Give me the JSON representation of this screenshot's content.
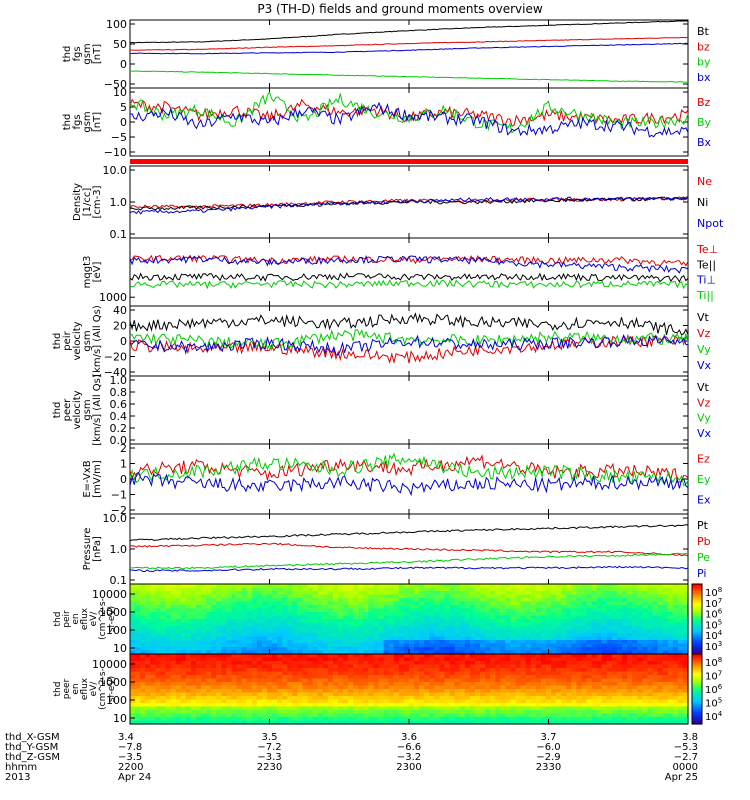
{
  "title": "P3 (TH-D) fields and ground moments overview",
  "chart_data": {
    "type": "line",
    "x_range": [
      "22:00",
      "24:00"
    ],
    "x_ticks": [
      "2200",
      "2230",
      "2300",
      "2330",
      "0000"
    ],
    "panels": [
      {
        "ylabel": [
          "thd",
          "fgs",
          "gsm",
          "[nT]"
        ],
        "yticks": [
          "100",
          "50",
          "0",
          "−50"
        ],
        "ylim": [
          -70,
          110
        ],
        "scale": "linear",
        "series": [
          {
            "name": "Bt",
            "color": "#000000",
            "values": [
              50,
              52,
              60,
              72,
              82,
              90,
              96,
              102,
              108
            ]
          },
          {
            "name": "bz",
            "color": "#dd0000",
            "values": [
              30,
              32,
              38,
              42,
              48,
              52,
              56,
              60,
              64
            ]
          },
          {
            "name": "by",
            "color": "#00cc00",
            "values": [
              -25,
              -28,
              -32,
              -36,
              -40,
              -44,
              -48,
              -52,
              -54
            ]
          },
          {
            "name": "bx",
            "color": "#0000cc",
            "values": [
              22,
              21,
              23,
              25,
              30,
              36,
              40,
              44,
              48
            ]
          }
        ]
      },
      {
        "ylabel": [
          "thd",
          "fgs",
          "gsm",
          "[nT]"
        ],
        "yticks": [
          "10",
          "5",
          "0",
          "−5",
          "−10"
        ],
        "ylim": [
          -14,
          11
        ],
        "scale": "linear",
        "series": [
          {
            "name": "Bz",
            "color": "#dd0000",
            "values": [
              5,
              4,
              1,
              3,
              0,
              5,
              2,
              3,
              0,
              2,
              1,
              -1,
              1,
              0,
              -1,
              0,
              1
            ]
          },
          {
            "name": "By",
            "color": "#00cc00",
            "values": [
              6,
              1,
              3,
              -2,
              8,
              -1,
              7,
              2,
              0,
              3,
              -2,
              -4,
              4,
              1,
              -2,
              -2,
              0
            ]
          },
          {
            "name": "Bx",
            "color": "#0000cc",
            "values": [
              0,
              2,
              -3,
              1,
              -2,
              3,
              -1,
              4,
              1,
              0,
              -1,
              -5,
              -4,
              -2,
              -3,
              -5,
              -5
            ]
          }
        ]
      },
      {
        "ylabel": [
          "Density",
          "[1/cc]",
          "[cm-3]"
        ],
        "yticks": [
          "10.0",
          "1.0",
          "0.1"
        ],
        "ylim": [
          0.1,
          12
        ],
        "scale": "log",
        "series": [
          {
            "name": "Ne",
            "color": "#dd0000",
            "values": [
              0.8,
              0.8,
              0.9,
              1.1,
              1.2,
              1.2,
              1.3,
              1.3,
              1.4
            ]
          },
          {
            "name": "Ni",
            "color": "#000000",
            "values": [
              0.7,
              0.75,
              0.85,
              1.0,
              1.1,
              1.1,
              1.2,
              1.3,
              1.4
            ]
          },
          {
            "name": "Npot",
            "color": "#0000cc",
            "values": [
              0.55,
              0.6,
              0.8,
              1.0,
              1.15,
              1.3,
              1.35,
              1.35,
              1.4
            ]
          }
        ]
      },
      {
        "ylabel": [
          "mqgt3",
          "[eV]"
        ],
        "yticks": [
          "1000"
        ],
        "ylim": [
          300,
          40000
        ],
        "scale": "log",
        "series": [
          {
            "name": "Te⊥",
            "color": "#dd0000",
            "values": [
              9000,
              9500,
              8000,
              9000,
              8500,
              9000,
              8000,
              8500,
              6000
            ]
          },
          {
            "name": "Te||",
            "color": "#000000",
            "values": [
              2500,
              2500,
              2400,
              2600,
              2500,
              2400,
              2600,
              2300,
              2200
            ]
          },
          {
            "name": "Ti⊥",
            "color": "#0000cc",
            "values": [
              8000,
              9000,
              7000,
              8500,
              9000,
              8000,
              6000,
              5000,
              4000
            ]
          },
          {
            "name": "Ti||",
            "color": "#00cc00",
            "values": [
              1500,
              1400,
              1500,
              1400,
              1600,
              1500,
              1400,
              1500,
              1400
            ]
          }
        ]
      },
      {
        "ylabel": [
          "thd",
          "peir",
          "velocity",
          "gsm",
          "[km/s] (All Qs)"
        ],
        "yticks": [
          "40",
          "20",
          "0",
          "−20",
          "−40"
        ],
        "ylim": [
          -42,
          42
        ],
        "scale": "linear",
        "series": [
          {
            "name": "Vt",
            "color": "#000000",
            "values": [
              18,
              22,
              25,
              20,
              28,
              22,
              20,
              24,
              10
            ]
          },
          {
            "name": "Vz",
            "color": "#dd0000",
            "values": [
              -5,
              -10,
              -8,
              -15,
              -20,
              -10,
              -5,
              0,
              0
            ]
          },
          {
            "name": "Vy",
            "color": "#00cc00",
            "values": [
              5,
              0,
              -5,
              8,
              2,
              0,
              5,
              3,
              2
            ]
          },
          {
            "name": "Vx",
            "color": "#0000cc",
            "values": [
              -5,
              -8,
              -2,
              -10,
              0,
              -5,
              -3,
              0,
              0
            ]
          }
        ]
      },
      {
        "ylabel": [
          "thd",
          "peer",
          "velocity",
          "gsm",
          "[km/s] (All Qs)"
        ],
        "yticks": [
          "1.0",
          "0.8",
          "0.6",
          "0.4",
          "0.2",
          "0.0"
        ],
        "ylim": [
          0,
          1
        ],
        "scale": "linear",
        "series": [
          {
            "name": "Vt",
            "color": "#000000",
            "values": []
          },
          {
            "name": "Vz",
            "color": "#dd0000",
            "values": []
          },
          {
            "name": "Vy",
            "color": "#00cc00",
            "values": []
          },
          {
            "name": "Vx",
            "color": "#0000cc",
            "values": []
          }
        ]
      },
      {
        "ylabel": [
          "E=-VxB",
          "[mV/m]"
        ],
        "yticks": [
          "2",
          "1",
          "0",
          "−1",
          "−2"
        ],
        "ylim": [
          -2.2,
          2.2
        ],
        "scale": "linear",
        "series": [
          {
            "name": "Ez",
            "color": "#dd0000",
            "values": [
              0.5,
              0.8,
              0.3,
              1.0,
              0.6,
              1.2,
              0.4,
              0.5,
              0.2
            ]
          },
          {
            "name": "Ey",
            "color": "#00cc00",
            "values": [
              0.2,
              0.5,
              1.0,
              0.6,
              1.3,
              0.3,
              0.5,
              0.1,
              0.0
            ]
          },
          {
            "name": "Ex",
            "color": "#0000cc",
            "values": [
              0.0,
              -0.3,
              -0.5,
              -0.2,
              -0.6,
              -0.3,
              -0.4,
              -0.2,
              -0.2
            ]
          }
        ]
      },
      {
        "ylabel": [
          "Pressure",
          "[nPa]"
        ],
        "yticks": [
          "10.0",
          "1.0",
          "0.1"
        ],
        "ylim": [
          0.1,
          12
        ],
        "scale": "log",
        "series": [
          {
            "name": "Pt",
            "color": "#000000",
            "values": [
              2.0,
              2.3,
              2.6,
              3.0,
              3.5,
              4.0,
              4.5,
              5.0,
              5.5
            ]
          },
          {
            "name": "Pb",
            "color": "#dd0000",
            "values": [
              1.3,
              1.4,
              1.6,
              1.2,
              1.1,
              1.0,
              0.9,
              0.9,
              0.7
            ]
          },
          {
            "name": "Pe",
            "color": "#00cc00",
            "values": [
              0.3,
              0.3,
              0.35,
              0.4,
              0.45,
              0.55,
              0.65,
              0.7,
              0.8
            ]
          },
          {
            "name": "Pi",
            "color": "#0000cc",
            "values": [
              0.25,
              0.25,
              0.28,
              0.28,
              0.3,
              0.3,
              0.3,
              0.32,
              0.3
            ]
          }
        ]
      }
    ],
    "spectrograms": [
      {
        "type": "heatmap",
        "ylabel": [
          "thd",
          "peir",
          "en",
          "eflux",
          "eV/",
          "(cm^2-s-",
          "sr-eV)"
        ],
        "yticks": [
          "10000",
          "1000",
          "100",
          "10"
        ],
        "ylim": [
          8,
          20000
        ],
        "colorbar_ticks": [
          "10^8",
          "10^7",
          "10^6",
          "10^5",
          "10^4",
          "10^3"
        ],
        "colorbar_range": [
          2.5,
          8.5
        ]
      },
      {
        "type": "heatmap",
        "ylabel": [
          "thd",
          "peer",
          "en",
          "eflux",
          "eV/",
          "(cm^2-s-",
          "sr-eV)"
        ],
        "yticks": [
          "10000",
          "1000",
          "100",
          "10"
        ],
        "ylim": [
          8,
          20000
        ],
        "colorbar_ticks": [
          "10^8",
          "10^7",
          "10^6",
          "10^5",
          "10^4"
        ],
        "colorbar_range": [
          3.5,
          8.5
        ]
      }
    ],
    "ephemeris": {
      "rows": [
        {
          "label": "thd_X-GSM",
          "values": [
            "3.4",
            "3.5",
            "3.6",
            "3.7",
            "3.8"
          ]
        },
        {
          "label": "thd_Y-GSM",
          "values": [
            "−7.8",
            "−7.2",
            "−6.6",
            "−6.0",
            "−5.3"
          ]
        },
        {
          "label": "thd_Z-GSM",
          "values": [
            "−3.5",
            "−3.3",
            "−3.2",
            "−2.9",
            "−2.7"
          ]
        },
        {
          "label": "hhmm",
          "values": [
            "2200",
            "2230",
            "2300",
            "2330",
            "0000"
          ]
        },
        {
          "label": "2013",
          "values": [
            "Apr 24",
            "",
            "",
            "",
            "Apr 25"
          ]
        }
      ]
    }
  }
}
